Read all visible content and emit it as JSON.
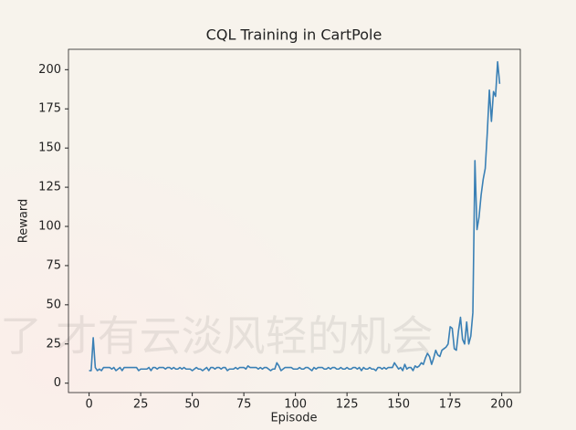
{
  "chart_data": {
    "type": "line",
    "title": "CQL Training in CartPole",
    "x_label": "Episode",
    "y_label": "Reward",
    "x": [
      0,
      1,
      2,
      3,
      4,
      5,
      6,
      7,
      8,
      9,
      10,
      11,
      12,
      13,
      14,
      15,
      16,
      17,
      18,
      19,
      20,
      21,
      22,
      23,
      24,
      25,
      26,
      27,
      28,
      29,
      30,
      31,
      32,
      33,
      34,
      35,
      36,
      37,
      38,
      39,
      40,
      41,
      42,
      43,
      44,
      45,
      46,
      47,
      48,
      49,
      50,
      51,
      52,
      53,
      54,
      55,
      56,
      57,
      58,
      59,
      60,
      61,
      62,
      63,
      64,
      65,
      66,
      67,
      68,
      69,
      70,
      71,
      72,
      73,
      74,
      75,
      76,
      77,
      78,
      79,
      80,
      81,
      82,
      83,
      84,
      85,
      86,
      87,
      88,
      89,
      90,
      91,
      92,
      93,
      94,
      95,
      96,
      97,
      98,
      99,
      100,
      101,
      102,
      103,
      104,
      105,
      106,
      107,
      108,
      109,
      110,
      111,
      112,
      113,
      114,
      115,
      116,
      117,
      118,
      119,
      120,
      121,
      122,
      123,
      124,
      125,
      126,
      127,
      128,
      129,
      130,
      131,
      132,
      133,
      134,
      135,
      136,
      137,
      138,
      139,
      140,
      141,
      142,
      143,
      144,
      145,
      146,
      147,
      148,
      149,
      150,
      151,
      152,
      153,
      154,
      155,
      156,
      157,
      158,
      159,
      160,
      161,
      162,
      163,
      164,
      165,
      166,
      167,
      168,
      169,
      170,
      171,
      172,
      173,
      174,
      175,
      176,
      177,
      178,
      179,
      180,
      181,
      182,
      183,
      184,
      185,
      186,
      187,
      188,
      189,
      190,
      191,
      192,
      193,
      194,
      195,
      196,
      197,
      198,
      199
    ],
    "series": [
      {
        "name": "Reward",
        "color": "#3a80b5",
        "values": [
          8,
          8,
          29,
          10,
          8,
          9,
          8,
          10,
          10,
          10,
          10,
          9,
          10,
          8,
          9,
          10,
          8,
          10,
          10,
          10,
          10,
          10,
          10,
          10,
          8,
          9,
          9,
          9,
          9,
          10,
          8,
          10,
          10,
          9,
          10,
          10,
          10,
          9,
          10,
          10,
          9,
          10,
          9,
          9,
          10,
          9,
          10,
          9,
          9,
          9,
          8,
          9,
          10,
          9,
          9,
          8,
          9,
          10,
          8,
          10,
          10,
          9,
          10,
          10,
          9,
          10,
          10,
          8,
          9,
          9,
          9,
          10,
          9,
          10,
          10,
          10,
          9,
          11,
          10,
          10,
          10,
          10,
          9,
          10,
          9,
          10,
          10,
          9,
          8,
          9,
          9,
          13,
          11,
          8,
          9,
          10,
          10,
          10,
          10,
          9,
          9,
          9,
          10,
          9,
          9,
          10,
          10,
          9,
          8,
          10,
          9,
          10,
          10,
          10,
          9,
          9,
          10,
          9,
          10,
          10,
          9,
          9,
          10,
          9,
          9,
          10,
          9,
          9,
          10,
          10,
          9,
          10,
          8,
          10,
          9,
          9,
          10,
          9,
          9,
          8,
          10,
          10,
          9,
          10,
          9,
          10,
          10,
          10,
          13,
          11,
          9,
          10,
          8,
          12,
          9,
          10,
          10,
          8,
          11,
          10,
          11,
          13,
          12,
          16,
          19,
          17,
          12,
          16,
          21,
          18,
          17,
          21,
          22,
          23,
          25,
          36,
          35,
          22,
          21,
          33,
          42,
          28,
          25,
          39,
          25,
          30,
          45,
          142,
          98,
          106,
          120,
          130,
          137,
          160,
          187,
          167,
          186,
          183,
          205,
          191
        ]
      }
    ],
    "xlim": [
      -10,
      209
    ],
    "ylim": [
      -6,
      213
    ],
    "xticks": [
      0,
      25,
      50,
      75,
      100,
      125,
      150,
      175,
      200
    ],
    "yticks": [
      0,
      25,
      50,
      75,
      100,
      125,
      150,
      175,
      200
    ]
  },
  "watermark": "了 才有云淡风轻的机会"
}
